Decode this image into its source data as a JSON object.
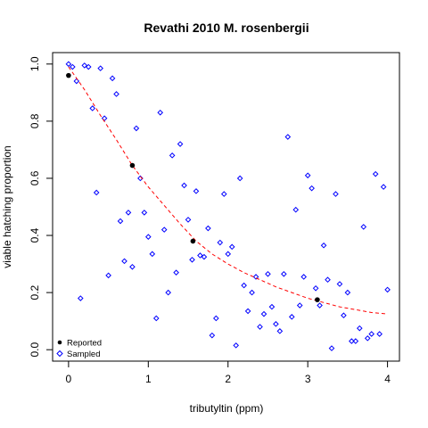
{
  "chart_data": {
    "type": "scatter",
    "title": "Revathi 2010 M. rosenbergii",
    "xlabel": "tributyltin (ppm)",
    "ylabel": "viable hatching proportion",
    "xlim": [
      -0.2,
      4.15
    ],
    "ylim": [
      -0.04,
      1.04
    ],
    "xticks": [
      0,
      1,
      2,
      3,
      4
    ],
    "yticks": [
      0.0,
      0.2,
      0.4,
      0.6,
      0.8,
      1.0
    ],
    "ytick_labels": [
      "0.0",
      "0.2",
      "0.4",
      "0.6",
      "0.8",
      "1.0"
    ],
    "legend_position": "bottom-left",
    "colors": {
      "reported": "#000000",
      "sampled": "#0000ff",
      "fit": "#ff0000"
    },
    "series": [
      {
        "name": "Reported",
        "marker": "filled-circle",
        "points": [
          [
            0,
            0.96
          ],
          [
            0.8,
            0.645
          ],
          [
            1.56,
            0.38
          ],
          [
            3.12,
            0.175
          ]
        ]
      },
      {
        "name": "Sampled",
        "marker": "open-diamond",
        "points": [
          [
            0.0,
            1.0
          ],
          [
            0.05,
            0.99
          ],
          [
            0.1,
            0.94
          ],
          [
            0.15,
            0.18
          ],
          [
            0.2,
            0.995
          ],
          [
            0.25,
            0.99
          ],
          [
            0.3,
            0.845
          ],
          [
            0.35,
            0.55
          ],
          [
            0.4,
            0.985
          ],
          [
            0.45,
            0.81
          ],
          [
            0.5,
            0.26
          ],
          [
            0.55,
            0.95
          ],
          [
            0.6,
            0.895
          ],
          [
            0.65,
            0.45
          ],
          [
            0.7,
            0.31
          ],
          [
            0.75,
            0.48
          ],
          [
            0.8,
            0.29
          ],
          [
            0.85,
            0.775
          ],
          [
            0.9,
            0.6
          ],
          [
            0.95,
            0.48
          ],
          [
            1.0,
            0.395
          ],
          [
            1.05,
            0.335
          ],
          [
            1.1,
            0.11
          ],
          [
            1.15,
            0.83
          ],
          [
            1.2,
            0.42
          ],
          [
            1.25,
            0.2
          ],
          [
            1.3,
            0.68
          ],
          [
            1.35,
            0.27
          ],
          [
            1.4,
            0.72
          ],
          [
            1.45,
            0.575
          ],
          [
            1.5,
            0.455
          ],
          [
            1.55,
            0.315
          ],
          [
            1.6,
            0.555
          ],
          [
            1.65,
            0.33
          ],
          [
            1.7,
            0.325
          ],
          [
            1.75,
            0.425
          ],
          [
            1.8,
            0.05
          ],
          [
            1.85,
            0.11
          ],
          [
            1.9,
            0.375
          ],
          [
            1.95,
            0.545
          ],
          [
            2.0,
            0.335
          ],
          [
            2.05,
            0.36
          ],
          [
            2.1,
            0.015
          ],
          [
            2.15,
            0.6
          ],
          [
            2.2,
            0.225
          ],
          [
            2.25,
            0.135
          ],
          [
            2.3,
            0.2
          ],
          [
            2.35,
            0.255
          ],
          [
            2.4,
            0.08
          ],
          [
            2.45,
            0.125
          ],
          [
            2.5,
            0.265
          ],
          [
            2.55,
            0.15
          ],
          [
            2.6,
            0.09
          ],
          [
            2.65,
            0.065
          ],
          [
            2.7,
            0.265
          ],
          [
            2.75,
            0.745
          ],
          [
            2.8,
            0.115
          ],
          [
            2.85,
            0.49
          ],
          [
            2.9,
            0.155
          ],
          [
            2.95,
            0.255
          ],
          [
            3.0,
            0.61
          ],
          [
            3.05,
            0.565
          ],
          [
            3.1,
            0.215
          ],
          [
            3.15,
            0.155
          ],
          [
            3.2,
            0.365
          ],
          [
            3.25,
            0.245
          ],
          [
            3.3,
            0.005
          ],
          [
            3.35,
            0.545
          ],
          [
            3.4,
            0.23
          ],
          [
            3.45,
            0.12
          ],
          [
            3.5,
            0.2
          ],
          [
            3.55,
            0.03
          ],
          [
            3.6,
            0.03
          ],
          [
            3.65,
            0.075
          ],
          [
            3.7,
            0.43
          ],
          [
            3.75,
            0.04
          ],
          [
            3.8,
            0.055
          ],
          [
            3.85,
            0.615
          ],
          [
            3.9,
            0.055
          ],
          [
            3.95,
            0.57
          ],
          [
            4.0,
            0.21
          ]
        ]
      },
      {
        "name": "fit",
        "style": "dashed-line",
        "points": [
          [
            0,
            0.99
          ],
          [
            0.2,
            0.91
          ],
          [
            0.4,
            0.82
          ],
          [
            0.6,
            0.735
          ],
          [
            0.8,
            0.645
          ],
          [
            1.0,
            0.57
          ],
          [
            1.2,
            0.505
          ],
          [
            1.4,
            0.44
          ],
          [
            1.6,
            0.38
          ],
          [
            1.8,
            0.335
          ],
          [
            2.0,
            0.3
          ],
          [
            2.2,
            0.27
          ],
          [
            2.4,
            0.245
          ],
          [
            2.6,
            0.22
          ],
          [
            2.8,
            0.2
          ],
          [
            3.0,
            0.18
          ],
          [
            3.2,
            0.165
          ],
          [
            3.4,
            0.15
          ],
          [
            3.6,
            0.14
          ],
          [
            3.8,
            0.13
          ],
          [
            4.0,
            0.125
          ]
        ]
      }
    ]
  }
}
